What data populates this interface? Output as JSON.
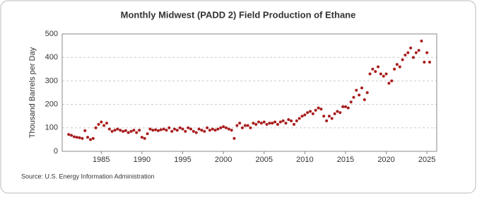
{
  "chart_data": {
    "type": "scatter",
    "title": "Monthly Midwest (PADD 2) Field Production of Ethane",
    "y_label": "Thousand Barrels per Day",
    "source": "Source: U.S. Energy Information Administration",
    "grid": true,
    "xlim": [
      1980.2,
      2026.2
    ],
    "xticks": [
      1985,
      1990,
      1995,
      2000,
      2005,
      2010,
      2015,
      2020,
      2025
    ],
    "ylim": [
      0,
      500
    ],
    "yticks": [
      0,
      100,
      200,
      300,
      400,
      500
    ],
    "series": [
      {
        "name": "Ethane",
        "color": "#a81c1c",
        "x": [
          1981,
          1981.33,
          1981.67,
          1982,
          1982.33,
          1982.67,
          1983,
          1983.33,
          1983.67,
          1984,
          1984.33,
          1984.67,
          1985,
          1985.33,
          1985.67,
          1986,
          1986.33,
          1986.67,
          1987,
          1987.33,
          1987.67,
          1988,
          1988.33,
          1988.67,
          1989,
          1989.33,
          1989.67,
          1990,
          1990.33,
          1990.67,
          1991,
          1991.33,
          1991.67,
          1992,
          1992.33,
          1992.67,
          1993,
          1993.33,
          1993.67,
          1994,
          1994.33,
          1994.67,
          1995,
          1995.33,
          1995.67,
          1996,
          1996.33,
          1996.67,
          1997,
          1997.33,
          1997.67,
          1998,
          1998.33,
          1998.67,
          1999,
          1999.33,
          1999.67,
          2000,
          2000.33,
          2000.67,
          2001,
          2001.33,
          2001.67,
          2002,
          2002.33,
          2002.67,
          2003,
          2003.33,
          2003.67,
          2004,
          2004.33,
          2004.67,
          2005,
          2005.33,
          2005.67,
          2006,
          2006.33,
          2006.67,
          2007,
          2007.33,
          2007.67,
          2008,
          2008.33,
          2008.67,
          2009,
          2009.33,
          2009.67,
          2010,
          2010.33,
          2010.67,
          2011,
          2011.33,
          2011.67,
          2012,
          2012.33,
          2012.67,
          2013,
          2013.33,
          2013.67,
          2014,
          2014.33,
          2014.67,
          2015,
          2015.33,
          2015.67,
          2016,
          2016.33,
          2016.67,
          2017,
          2017.33,
          2017.67,
          2018,
          2018.33,
          2018.67,
          2019,
          2019.33,
          2019.67,
          2020,
          2020.33,
          2020.67,
          2021,
          2021.33,
          2021.67,
          2022,
          2022.33,
          2022.67,
          2023,
          2023.33,
          2023.67,
          2024,
          2024.33,
          2024.67,
          2025,
          2025.33
        ],
        "values": [
          72,
          68,
          62,
          60,
          58,
          55,
          88,
          60,
          50,
          55,
          100,
          115,
          125,
          110,
          120,
          95,
          85,
          90,
          95,
          90,
          85,
          88,
          80,
          85,
          90,
          80,
          90,
          60,
          55,
          75,
          95,
          90,
          92,
          88,
          92,
          95,
          90,
          100,
          85,
          95,
          90,
          100,
          95,
          85,
          100,
          95,
          85,
          80,
          95,
          90,
          85,
          100,
          90,
          95,
          90,
          95,
          100,
          105,
          100,
          95,
          90,
          55,
          110,
          120,
          100,
          110,
          110,
          100,
          120,
          115,
          125,
          120,
          125,
          115,
          120,
          120,
          125,
          115,
          125,
          130,
          120,
          135,
          130,
          115,
          130,
          140,
          150,
          155,
          165,
          170,
          160,
          175,
          185,
          180,
          150,
          130,
          150,
          140,
          160,
          170,
          165,
          190,
          190,
          185,
          210,
          230,
          260,
          240,
          270,
          220,
          250,
          330,
          350,
          340,
          360,
          330,
          320,
          330,
          290,
          300,
          350,
          370,
          360,
          390,
          410,
          420,
          440,
          400,
          420,
          430,
          470,
          380,
          420,
          380
        ]
      }
    ]
  }
}
